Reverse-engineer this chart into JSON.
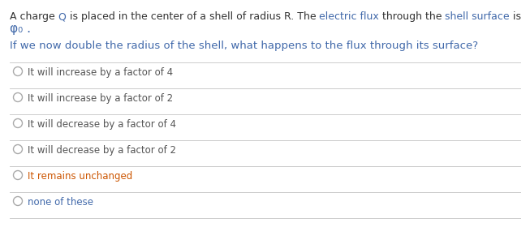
{
  "background_color": "#ffffff",
  "segments_line1": [
    [
      "A charge ",
      "#333333"
    ],
    [
      "Q",
      "#4169aa"
    ],
    [
      " is placed in the center of a shell of radius R. The ",
      "#333333"
    ],
    [
      "electric flux",
      "#4169aa"
    ],
    [
      " through the ",
      "#333333"
    ],
    [
      "shell surface",
      "#4169aa"
    ],
    [
      " is",
      "#333333"
    ]
  ],
  "phi_symbol": "φ₀",
  "phi_suffix": " .",
  "question_text": "If we now double the radius of the shell, what happens to the flux through its surface?",
  "options": [
    "It will increase by a factor of 4",
    "It will increase by a factor of 2",
    "It will decrease by a factor of 4",
    "It will decrease by a factor of 2",
    "It remains unchanged",
    "none of these"
  ],
  "option_colors": [
    "#555555",
    "#555555",
    "#555555",
    "#555555",
    "#cc5500",
    "#4169aa"
  ],
  "blue_color": "#4169aa",
  "question_color": "#4169aa",
  "text_color": "#333333",
  "line_color": "#cccccc",
  "circle_color": "#aaaaaa",
  "font_size_intro": 9.0,
  "font_size_phi": 11.0,
  "font_size_question": 9.5,
  "font_size_options": 8.5
}
